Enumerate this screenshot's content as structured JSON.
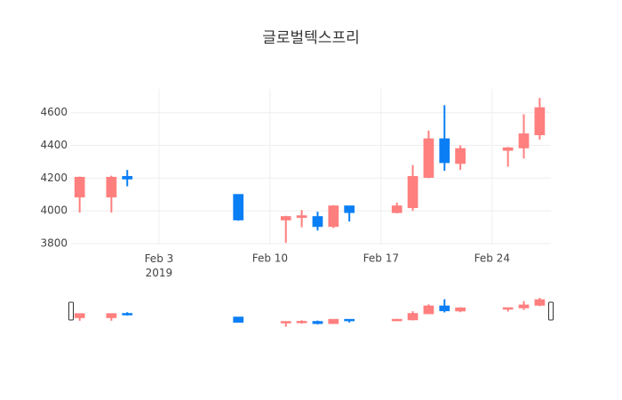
{
  "chart_data": {
    "type": "candlestick",
    "title": "글로벌텍스프리",
    "x": [
      "2019-01-29",
      "2019-01-31",
      "2019-02-01",
      "2019-02-08",
      "2019-02-11",
      "2019-02-12",
      "2019-02-13",
      "2019-02-14",
      "2019-02-15",
      "2019-02-18",
      "2019-02-19",
      "2019-02-20",
      "2019-02-21",
      "2019-02-22",
      "2019-02-25",
      "2019-02-26",
      "2019-02-27"
    ],
    "open": [
      4085,
      4085,
      4210,
      4100,
      3945,
      3960,
      3965,
      3905,
      4030,
      3990,
      4020,
      4205,
      4440,
      4290,
      4370,
      4385,
      4465
    ],
    "high": [
      4210,
      4215,
      4250,
      4100,
      3970,
      4005,
      3995,
      4035,
      4030,
      4050,
      4280,
      4490,
      4645,
      4400,
      4390,
      4590,
      4690
    ],
    "low": [
      3990,
      3990,
      4150,
      3940,
      3805,
      3900,
      3880,
      3895,
      3935,
      3985,
      4000,
      4200,
      4245,
      4250,
      4270,
      4320,
      4435
    ],
    "close": [
      4205,
      4205,
      4195,
      3945,
      3965,
      3970,
      3905,
      4030,
      3990,
      4030,
      4210,
      4440,
      4295,
      4380,
      4385,
      4470,
      4630
    ],
    "increasing_color": "#ff7f7f",
    "decreasing_color": "#0a7ff5",
    "xlim": [
      "2019-01-28T11:00:00Z",
      "2019-02-27T17:00:00Z"
    ],
    "xticks": [
      {
        "value": "2019-02-03",
        "label": "Feb 3\n2019"
      },
      {
        "value": "2019-02-10",
        "label": "Feb 10"
      },
      {
        "value": "2019-02-17",
        "label": "Feb 17"
      },
      {
        "value": "2019-02-24",
        "label": "Feb 24"
      }
    ],
    "ylim": [
      3795,
      4745
    ],
    "yticks": [
      3800,
      4000,
      4200,
      4400,
      4600
    ],
    "grid": true,
    "rangeslider": true
  }
}
